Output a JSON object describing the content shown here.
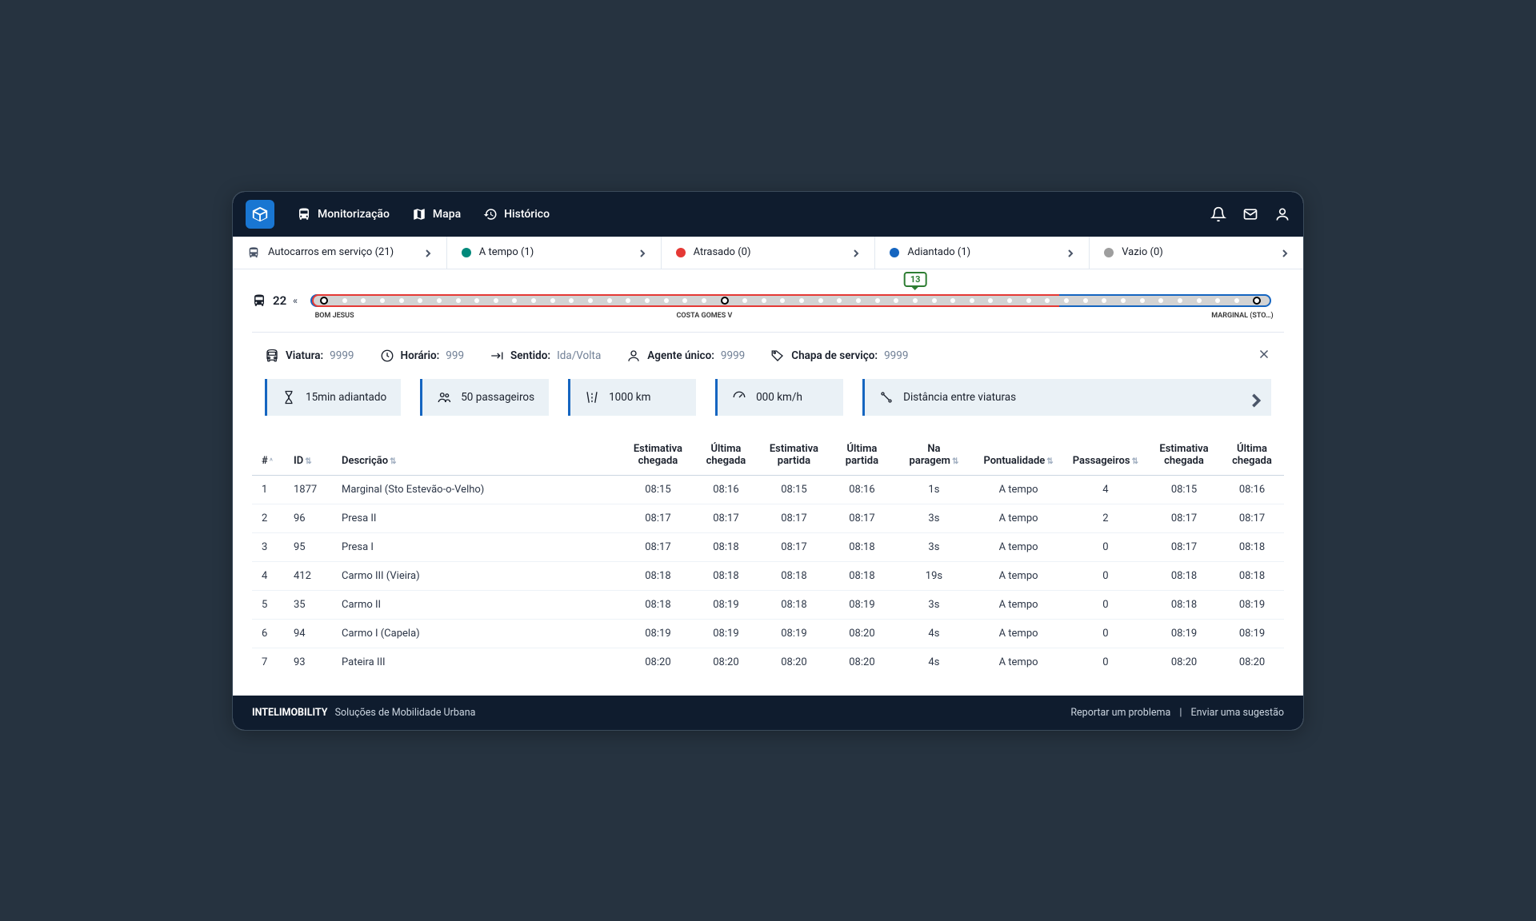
{
  "colors": {
    "bg": "#263340",
    "navbar": "#0f1c2e",
    "accent": "#1565c0",
    "ontime": "#00897b",
    "late": "#e53935",
    "early": "#1565c0",
    "empty": "#9e9e9e",
    "card_bg": "#eaf1f6",
    "marker_border": "#2e7d32"
  },
  "nav": {
    "monitor": "Monitorização",
    "map": "Mapa",
    "history": "Histórico"
  },
  "filters": {
    "service": {
      "label": "Autocarros em serviço",
      "count": 21
    },
    "ontime": {
      "label": "A tempo",
      "count": 1,
      "color": "#00897b"
    },
    "late": {
      "label": "Atrasado",
      "count": 0,
      "color": "#e53935"
    },
    "early": {
      "label": "Adiantado",
      "count": 1,
      "color": "#1565c0"
    },
    "empty": {
      "label": "Vazio",
      "count": 0,
      "color": "#9e9e9e"
    }
  },
  "route": {
    "id": "22",
    "marker_value": "13",
    "marker_position_pct": 63,
    "red_segment_pct": 78,
    "stops": {
      "start": "BOM JESUS",
      "mid": "COSTA GOMES V",
      "end": "MARGINAL (STO…)"
    },
    "dot_count": 50
  },
  "detail": {
    "viatura_label": "Viatura:",
    "viatura": "9999",
    "horario_label": "Horário:",
    "horario": "999",
    "sentido_label": "Sentido:",
    "sentido": "Ida/Volta",
    "agente_label": "Agente único:",
    "agente": "9999",
    "chapa_label": "Chapa de serviço:",
    "chapa": "9999"
  },
  "stats": {
    "adiantado": "15min adiantado",
    "passageiros": "50 passageiros",
    "km": "1000 km",
    "speed": "000 km/h",
    "distancia": "Distância entre viaturas"
  },
  "table": {
    "headers": {
      "idx": "#",
      "id": "ID",
      "desc": "Descrição",
      "est_chegada": "Estimativa chegada",
      "ult_chegada": "Última chegada",
      "est_partida": "Estimativa partida",
      "ult_partida": "Última partida",
      "na_paragem": "Na paragem",
      "pontualidade": "Pontualidade",
      "passageiros": "Passageiros",
      "est_chegada2": "Estimativa chegada",
      "ult_chegada2": "Última chegada"
    },
    "rows": [
      {
        "idx": 1,
        "id": "1877",
        "desc": "Marginal (Sto Estevão-o-Velho)",
        "est_chegada": "08:15",
        "ult_chegada": "08:16",
        "est_partida": "08:15",
        "ult_partida": "08:16",
        "na_paragem": "1s",
        "pontualidade": "A tempo",
        "passageiros": 4,
        "est_chegada2": "08:15",
        "ult_chegada2": "08:16"
      },
      {
        "idx": 2,
        "id": "96",
        "desc": "Presa II",
        "est_chegada": "08:17",
        "ult_chegada": "08:17",
        "est_partida": "08:17",
        "ult_partida": "08:17",
        "na_paragem": "3s",
        "pontualidade": "A tempo",
        "passageiros": 2,
        "est_chegada2": "08:17",
        "ult_chegada2": "08:17"
      },
      {
        "idx": 3,
        "id": "95",
        "desc": "Presa I",
        "est_chegada": "08:17",
        "ult_chegada": "08:18",
        "est_partida": "08:17",
        "ult_partida": "08:18",
        "na_paragem": "3s",
        "pontualidade": "A tempo",
        "passageiros": 0,
        "est_chegada2": "08:17",
        "ult_chegada2": "08:18"
      },
      {
        "idx": 4,
        "id": "412",
        "desc": "Carmo III (Vieira)",
        "est_chegada": "08:18",
        "ult_chegada": "08:18",
        "est_partida": "08:18",
        "ult_partida": "08:18",
        "na_paragem": "19s",
        "pontualidade": "A tempo",
        "passageiros": 0,
        "est_chegada2": "08:18",
        "ult_chegada2": "08:18"
      },
      {
        "idx": 5,
        "id": "35",
        "desc": "Carmo II",
        "est_chegada": "08:18",
        "ult_chegada": "08:19",
        "est_partida": "08:18",
        "ult_partida": "08:19",
        "na_paragem": "3s",
        "pontualidade": "A tempo",
        "passageiros": 0,
        "est_chegada2": "08:18",
        "ult_chegada2": "08:19"
      },
      {
        "idx": 6,
        "id": "94",
        "desc": "Carmo I (Capela)",
        "est_chegada": "08:19",
        "ult_chegada": "08:19",
        "est_partida": "08:19",
        "ult_partida": "08:20",
        "na_paragem": "4s",
        "pontualidade": "A tempo",
        "passageiros": 0,
        "est_chegada2": "08:19",
        "ult_chegada2": "08:19"
      },
      {
        "idx": 7,
        "id": "93",
        "desc": "Pateira III",
        "est_chegada": "08:20",
        "ult_chegada": "08:20",
        "est_partida": "08:20",
        "ult_partida": "08:20",
        "na_paragem": "4s",
        "pontualidade": "A tempo",
        "passageiros": 0,
        "est_chegada2": "08:20",
        "ult_chegada2": "08:20"
      }
    ]
  },
  "footer": {
    "brand": "INTELIMOBILITY",
    "tagline": "Soluções de Mobilidade Urbana",
    "report": "Reportar um problema",
    "suggest": "Enviar uma sugestão"
  }
}
